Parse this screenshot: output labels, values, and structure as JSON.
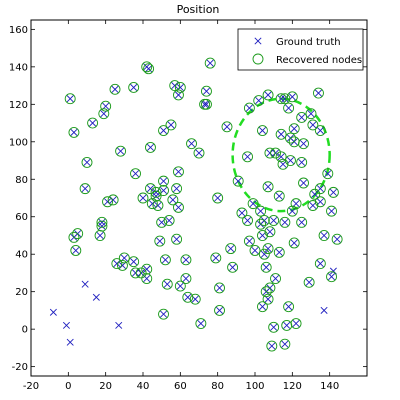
{
  "chart_data": {
    "type": "scatter",
    "title": "Position",
    "xlabel": "",
    "ylabel": "",
    "xlim": [
      -20,
      160
    ],
    "ylim": [
      -25,
      165
    ],
    "xticks": [
      -20,
      0,
      20,
      40,
      60,
      80,
      100,
      120,
      140
    ],
    "yticks": [
      -20,
      0,
      20,
      40,
      60,
      80,
      100,
      120,
      140,
      160
    ],
    "grid": false,
    "legend_position": "top-right",
    "series": [
      {
        "name": "Ground truth",
        "marker": "x",
        "color": "#1f1fbf",
        "points": [
          [
            -8,
            9
          ],
          [
            -1,
            2
          ],
          [
            1,
            -7
          ],
          [
            9,
            24
          ],
          [
            15,
            17
          ],
          [
            27,
            2
          ],
          [
            137,
            10
          ],
          [
            142,
            31
          ],
          [
            1,
            123
          ],
          [
            3,
            105
          ],
          [
            13,
            110
          ],
          [
            19,
            115
          ],
          [
            20,
            119
          ],
          [
            25,
            128
          ],
          [
            35,
            129
          ],
          [
            42,
            140
          ],
          [
            43,
            139
          ],
          [
            59,
            125
          ],
          [
            57,
            130
          ],
          [
            60,
            129
          ],
          [
            76,
            142
          ],
          [
            73,
            120
          ],
          [
            74,
            127
          ],
          [
            74,
            120
          ],
          [
            85,
            108
          ],
          [
            55,
            109
          ],
          [
            51,
            106
          ],
          [
            44,
            97
          ],
          [
            28,
            95
          ],
          [
            66,
            99
          ],
          [
            70,
            94
          ],
          [
            59,
            84
          ],
          [
            36,
            83
          ],
          [
            10,
            89
          ],
          [
            21,
            68
          ],
          [
            24,
            69
          ],
          [
            9,
            75
          ],
          [
            5,
            51
          ],
          [
            3,
            49
          ],
          [
            4,
            42
          ],
          [
            18,
            57
          ],
          [
            18,
            55
          ],
          [
            17,
            50
          ],
          [
            40,
            70
          ],
          [
            44,
            75
          ],
          [
            47,
            71
          ],
          [
            51,
            74
          ],
          [
            51,
            79
          ],
          [
            47,
            73
          ],
          [
            48,
            66
          ],
          [
            45,
            67
          ],
          [
            50,
            57
          ],
          [
            56,
            69
          ],
          [
            59,
            65
          ],
          [
            58,
            75
          ],
          [
            80,
            70
          ],
          [
            54,
            58
          ],
          [
            49,
            47
          ],
          [
            58,
            48
          ],
          [
            52,
            37
          ],
          [
            63,
            37
          ],
          [
            63,
            27
          ],
          [
            42,
            32
          ],
          [
            42,
            27
          ],
          [
            36,
            30
          ],
          [
            29,
            34
          ],
          [
            35,
            36
          ],
          [
            39,
            30
          ],
          [
            26,
            35
          ],
          [
            30,
            38
          ],
          [
            53,
            24
          ],
          [
            60,
            23
          ],
          [
            64,
            17
          ],
          [
            68,
            16
          ],
          [
            51,
            8
          ],
          [
            71,
            3
          ],
          [
            81,
            10
          ],
          [
            81,
            22
          ],
          [
            88,
            33
          ],
          [
            87,
            43
          ],
          [
            79,
            38
          ],
          [
            97,
            47
          ],
          [
            100,
            42
          ],
          [
            105,
            40
          ],
          [
            104,
            50
          ],
          [
            107,
            43
          ],
          [
            96,
            58
          ],
          [
            99,
            67
          ],
          [
            103,
            63
          ],
          [
            103,
            56
          ],
          [
            106,
            33
          ],
          [
            113,
            41
          ],
          [
            121,
            46
          ],
          [
            93,
            62
          ],
          [
            108,
            52
          ],
          [
            107,
            76
          ],
          [
            105,
            58
          ],
          [
            110,
            58
          ],
          [
            111,
            27
          ],
          [
            108,
            22
          ],
          [
            107,
            16
          ],
          [
            106,
            20
          ],
          [
            104,
            12
          ],
          [
            110,
            1
          ],
          [
            116,
            -8
          ],
          [
            109,
            -9
          ],
          [
            117,
            2
          ],
          [
            118,
            12
          ],
          [
            122,
            3
          ],
          [
            129,
            25
          ],
          [
            135,
            35
          ],
          [
            141,
            63
          ],
          [
            144,
            48
          ],
          [
            141,
            28
          ],
          [
            137,
            50
          ],
          [
            135,
            75
          ],
          [
            126,
            78
          ],
          [
            131,
            66
          ],
          [
            132,
            72
          ],
          [
            139,
            83
          ],
          [
            142,
            73
          ],
          [
            135,
            68
          ],
          [
            122,
            67
          ],
          [
            113,
            71
          ],
          [
            116,
            57
          ],
          [
            125,
            57
          ],
          [
            120,
            63
          ],
          [
            96,
            92
          ],
          [
            91,
            79
          ],
          [
            104,
            106
          ],
          [
            108,
            94
          ],
          [
            111,
            94
          ],
          [
            114,
            92
          ],
          [
            115,
            88
          ],
          [
            119,
            90
          ],
          [
            121,
            100
          ],
          [
            125,
            89
          ],
          [
            126,
            99
          ],
          [
            125,
            113
          ],
          [
            130,
            115
          ],
          [
            131,
            109
          ],
          [
            134,
            126
          ],
          [
            135,
            106
          ],
          [
            116,
            123
          ],
          [
            118,
            118
          ],
          [
            121,
            107
          ],
          [
            119,
            102
          ],
          [
            114,
            123
          ],
          [
            114,
            104
          ],
          [
            120,
            124
          ],
          [
            97,
            118
          ],
          [
            102,
            122
          ],
          [
            107,
            125
          ]
        ]
      },
      {
        "name": "Recovered nodes",
        "marker": "o",
        "color": "#1a9a1a",
        "points": [
          [
            1,
            123
          ],
          [
            3,
            105
          ],
          [
            13,
            110
          ],
          [
            19,
            115
          ],
          [
            20,
            119
          ],
          [
            25,
            128
          ],
          [
            35,
            129
          ],
          [
            42,
            140
          ],
          [
            43,
            139
          ],
          [
            59,
            125
          ],
          [
            57,
            130
          ],
          [
            60,
            129
          ],
          [
            76,
            142
          ],
          [
            73,
            120
          ],
          [
            74,
            127
          ],
          [
            74,
            120
          ],
          [
            85,
            108
          ],
          [
            55,
            109
          ],
          [
            51,
            106
          ],
          [
            44,
            97
          ],
          [
            28,
            95
          ],
          [
            66,
            99
          ],
          [
            70,
            94
          ],
          [
            59,
            84
          ],
          [
            36,
            83
          ],
          [
            10,
            89
          ],
          [
            21,
            68
          ],
          [
            24,
            69
          ],
          [
            9,
            75
          ],
          [
            5,
            51
          ],
          [
            3,
            49
          ],
          [
            4,
            42
          ],
          [
            18,
            57
          ],
          [
            18,
            55
          ],
          [
            17,
            50
          ],
          [
            40,
            70
          ],
          [
            44,
            75
          ],
          [
            47,
            71
          ],
          [
            51,
            74
          ],
          [
            51,
            79
          ],
          [
            47,
            73
          ],
          [
            48,
            66
          ],
          [
            45,
            67
          ],
          [
            50,
            57
          ],
          [
            56,
            69
          ],
          [
            59,
            65
          ],
          [
            58,
            75
          ],
          [
            80,
            70
          ],
          [
            54,
            58
          ],
          [
            49,
            47
          ],
          [
            58,
            48
          ],
          [
            52,
            37
          ],
          [
            63,
            37
          ],
          [
            63,
            27
          ],
          [
            42,
            32
          ],
          [
            42,
            27
          ],
          [
            36,
            30
          ],
          [
            29,
            34
          ],
          [
            35,
            36
          ],
          [
            39,
            30
          ],
          [
            26,
            35
          ],
          [
            30,
            38
          ],
          [
            53,
            24
          ],
          [
            60,
            23
          ],
          [
            64,
            17
          ],
          [
            68,
            16
          ],
          [
            51,
            8
          ],
          [
            71,
            3
          ],
          [
            81,
            10
          ],
          [
            81,
            22
          ],
          [
            88,
            33
          ],
          [
            87,
            43
          ],
          [
            79,
            38
          ],
          [
            97,
            47
          ],
          [
            100,
            42
          ],
          [
            105,
            40
          ],
          [
            104,
            50
          ],
          [
            107,
            43
          ],
          [
            96,
            58
          ],
          [
            99,
            67
          ],
          [
            103,
            63
          ],
          [
            103,
            56
          ],
          [
            106,
            33
          ],
          [
            113,
            41
          ],
          [
            121,
            46
          ],
          [
            93,
            62
          ],
          [
            108,
            52
          ],
          [
            107,
            76
          ],
          [
            105,
            58
          ],
          [
            110,
            58
          ],
          [
            111,
            27
          ],
          [
            108,
            22
          ],
          [
            107,
            16
          ],
          [
            106,
            20
          ],
          [
            104,
            12
          ],
          [
            110,
            1
          ],
          [
            116,
            -8
          ],
          [
            109,
            -9
          ],
          [
            117,
            2
          ],
          [
            118,
            12
          ],
          [
            122,
            3
          ],
          [
            129,
            25
          ],
          [
            135,
            35
          ],
          [
            141,
            63
          ],
          [
            144,
            48
          ],
          [
            141,
            28
          ],
          [
            137,
            50
          ],
          [
            135,
            75
          ],
          [
            126,
            78
          ],
          [
            131,
            66
          ],
          [
            132,
            72
          ],
          [
            139,
            83
          ],
          [
            142,
            73
          ],
          [
            135,
            68
          ],
          [
            122,
            67
          ],
          [
            113,
            71
          ],
          [
            116,
            57
          ],
          [
            125,
            57
          ],
          [
            120,
            63
          ],
          [
            96,
            92
          ],
          [
            91,
            79
          ],
          [
            104,
            106
          ],
          [
            108,
            94
          ],
          [
            111,
            94
          ],
          [
            114,
            92
          ],
          [
            115,
            88
          ],
          [
            119,
            90
          ],
          [
            121,
            100
          ],
          [
            125,
            89
          ],
          [
            126,
            99
          ],
          [
            125,
            113
          ],
          [
            130,
            115
          ],
          [
            131,
            109
          ],
          [
            134,
            126
          ],
          [
            135,
            106
          ],
          [
            116,
            123
          ],
          [
            118,
            118
          ],
          [
            121,
            107
          ],
          [
            119,
            102
          ],
          [
            114,
            123
          ],
          [
            114,
            104
          ],
          [
            120,
            124
          ],
          [
            97,
            118
          ],
          [
            102,
            122
          ],
          [
            107,
            125
          ]
        ]
      }
    ],
    "annotations": [
      {
        "kind": "dashed-circle",
        "color": "#22dd22",
        "center": [
          114,
          93
        ],
        "radius_x": 26,
        "radius_y": 30
      }
    ]
  }
}
